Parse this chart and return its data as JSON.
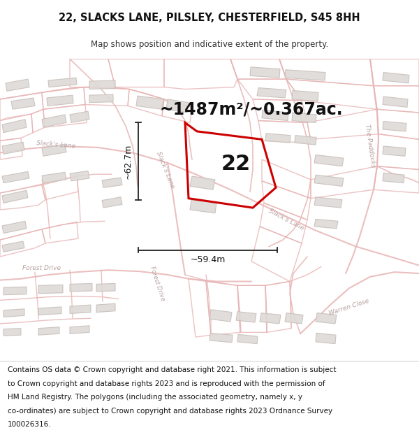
{
  "title": "22, SLACKS LANE, PILSLEY, CHESTERFIELD, S45 8HH",
  "subtitle": "Map shows position and indicative extent of the property.",
  "area_text": "~1487m²/~0.367ac.",
  "label_22": "22",
  "dim_vertical": "~62.7m",
  "dim_horizontal": "~59.4m",
  "copyright_lines": [
    "Contains OS data © Crown copyright and database right 2021. This information is subject",
    "to Crown copyright and database rights 2023 and is reproduced with the permission of",
    "HM Land Registry. The polygons (including the associated geometry, namely x, y",
    "co-ordinates) are subject to Crown copyright and database rights 2023 Ordnance Survey",
    "100026316."
  ],
  "map_bg": "#f8f6f4",
  "road_color": "#e8b4b4",
  "road_lw": 1.0,
  "building_edge": "#c8c0bc",
  "building_fill": "#dedad6",
  "property_color": "#cc0000",
  "property_lw": 2.2,
  "dim_color": "#222222",
  "title_fontsize": 10.5,
  "subtitle_fontsize": 8.5,
  "area_fontsize": 17,
  "label_fontsize": 22,
  "dim_fontsize": 9,
  "road_label_fontsize": 6.5,
  "copyright_fontsize": 7.5
}
